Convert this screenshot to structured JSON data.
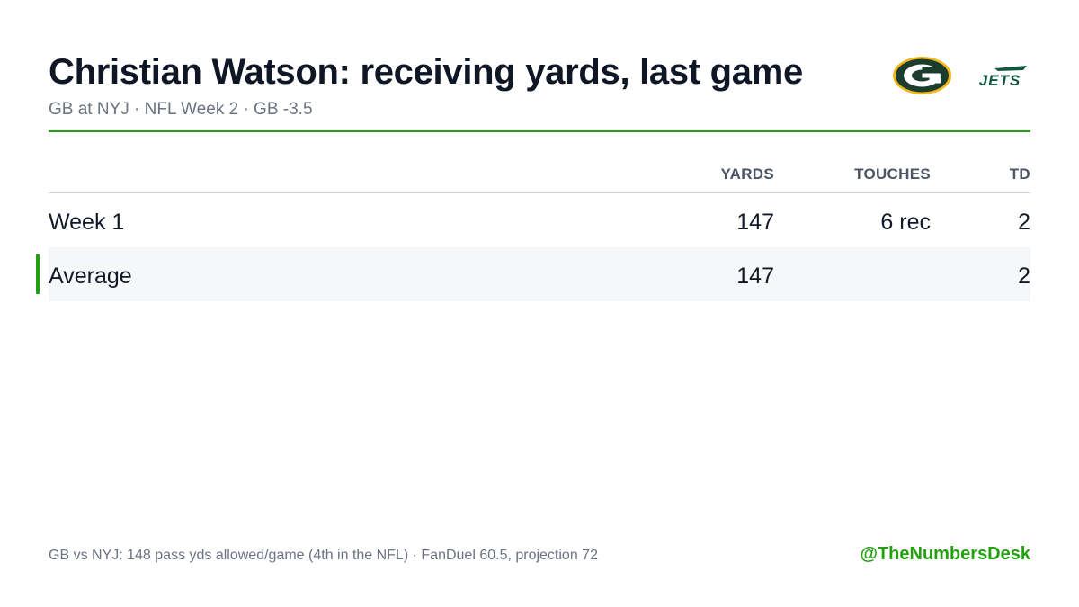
{
  "header": {
    "title": "Christian Watson: receiving yards, last game",
    "subtitle": "GB at NYJ · NFL Week 2 · GB -3.5"
  },
  "logos": {
    "packers": {
      "icon": "packers-logo-icon",
      "letter": "G",
      "colors": {
        "primary": "#1a3d2e",
        "secondary": "#f2b619"
      }
    },
    "jets": {
      "icon": "jets-logo-icon",
      "text": "JETS",
      "colors": {
        "primary": "#125740"
      }
    }
  },
  "table": {
    "columns": {
      "yards": "YARDS",
      "touches": "TOUCHES",
      "td": "TD"
    },
    "rows": [
      {
        "label": "Week 1",
        "yards": "147",
        "touches": "6 rec",
        "td": "2"
      },
      {
        "label": "Average",
        "yards": "147",
        "touches": "",
        "td": "2"
      }
    ]
  },
  "footer": {
    "note": "GB vs NYJ: 148 pass yds allowed/game (4th in the NFL) · FanDuel 60.5, projection 72",
    "handle": "@TheNumbersDesk"
  },
  "colors": {
    "accent": "#22a010",
    "text": "#0f1726",
    "muted": "#6b7280"
  }
}
